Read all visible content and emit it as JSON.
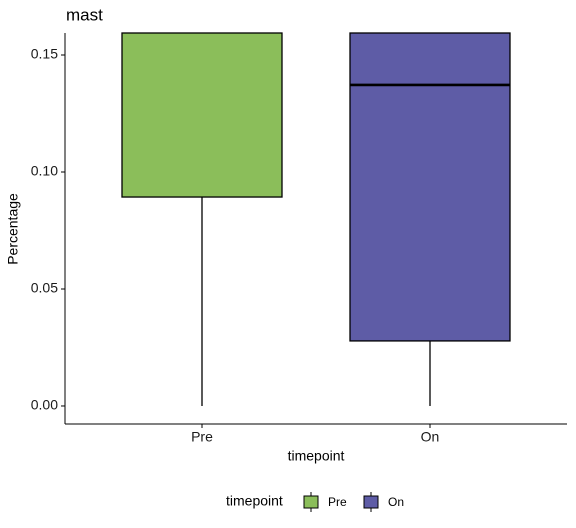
{
  "chart_data": {
    "type": "box",
    "title": "mast",
    "x_label": "timepoint",
    "y_label": "Percentage",
    "categories": [
      "Pre",
      "On"
    ],
    "series": [
      {
        "name": "Pre",
        "color": "#8bbe5a",
        "whisker_low": 0,
        "q1": 0.0893
      },
      {
        "name": "On",
        "color": "#5e5ca6",
        "whisker_low": 0,
        "q1": 0.0278,
        "median": 0.1372
      }
    ],
    "ylim": [
      -0.0077,
      0.1594
    ],
    "yticks": [
      {
        "value": 0,
        "label": "0.00"
      },
      {
        "value": 0.05,
        "label": "0.05"
      },
      {
        "value": 0.1,
        "label": "0.10"
      },
      {
        "value": 0.15,
        "label": "0.15"
      }
    ],
    "legend": {
      "title": "timepoint",
      "position": "bottom"
    }
  }
}
